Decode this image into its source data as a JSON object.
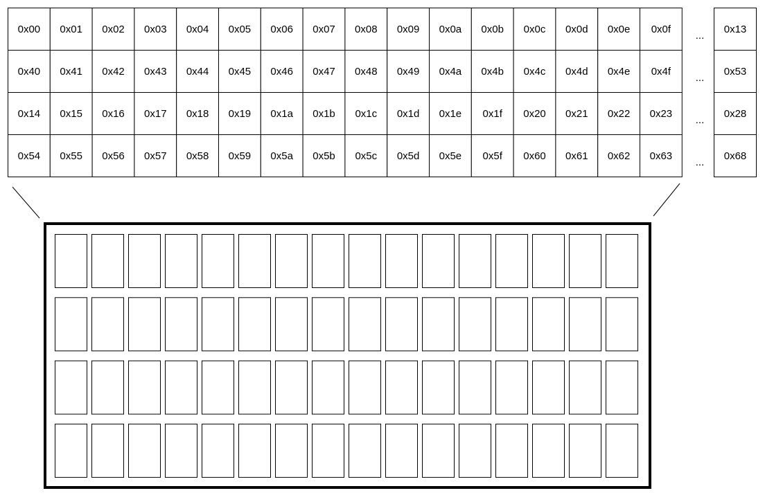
{
  "address_table": {
    "rows": [
      [
        "0x00",
        "0x01",
        "0x02",
        "0x03",
        "0x04",
        "0x05",
        "0x06",
        "0x07",
        "0x08",
        "0x09",
        "0x0a",
        "0x0b",
        "0x0c",
        "0x0d",
        "0x0e",
        "0x0f"
      ],
      [
        "0x40",
        "0x41",
        "0x42",
        "0x43",
        "0x44",
        "0x45",
        "0x46",
        "0x47",
        "0x48",
        "0x49",
        "0x4a",
        "0x4b",
        "0x4c",
        "0x4d",
        "0x4e",
        "0x4f"
      ],
      [
        "0x14",
        "0x15",
        "0x16",
        "0x17",
        "0x18",
        "0x19",
        "0x1a",
        "0x1b",
        "0x1c",
        "0x1d",
        "0x1e",
        "0x1f",
        "0x20",
        "0x21",
        "0x22",
        "0x23"
      ],
      [
        "0x54",
        "0x55",
        "0x56",
        "0x57",
        "0x58",
        "0x59",
        "0x5a",
        "0x5b",
        "0x5c",
        "0x5d",
        "0x5e",
        "0x5f",
        "0x60",
        "0x61",
        "0x62",
        "0x63"
      ]
    ],
    "ellipsis": "...",
    "last_column": [
      "0x13",
      "0x53",
      "0x28",
      "0x68"
    ]
  },
  "display": {
    "rows": 4,
    "columns": 16
  }
}
